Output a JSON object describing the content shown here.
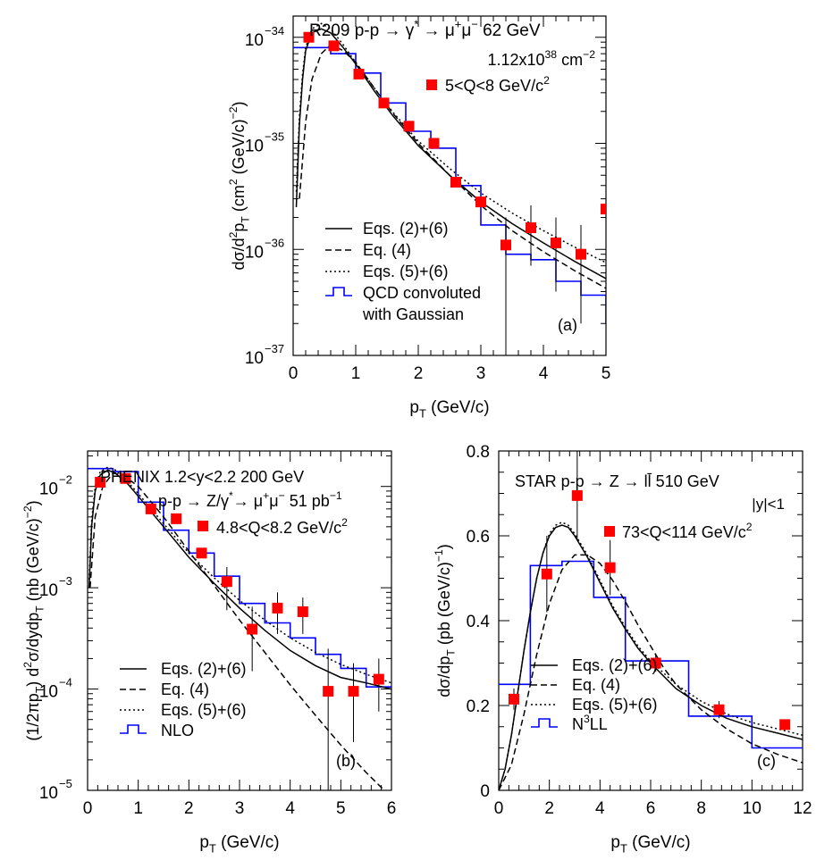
{
  "chart_data": [
    {
      "id": "a",
      "type": "scatter",
      "panel_label": "(a)",
      "xlabel": "p_T (GeV/c)",
      "ylabel": "dσ/d²p_T (cm² (GeV/c)⁻²)",
      "xlim": [
        0,
        5
      ],
      "ylim_log10": [
        -37,
        -33.8
      ],
      "x_ticks": [
        "0",
        "1",
        "2",
        "3",
        "4",
        "5"
      ],
      "y_ticks": [
        {
          "exp": -37,
          "label": "10",
          "sup": "−37"
        },
        {
          "exp": -36,
          "label": "10",
          "sup": "−36"
        },
        {
          "exp": -35,
          "label": "10",
          "sup": "−35"
        },
        {
          "exp": -34,
          "label": "10",
          "sup": "−34"
        }
      ],
      "annotations": [
        "R209  p-p → γ* → μ⁺μ⁻  62 GeV",
        "1.12x10³⁸ cm⁻²",
        "5<Q<8 GeV/c²"
      ],
      "legend": [
        "Eqs. (2)+(6)",
        "Eq. (4)",
        "Eqs. (5)+(6)",
        "QCD convoluted",
        "with Gaussian"
      ],
      "data_points": [
        {
          "x": 0.25,
          "y": 1e-34,
          "yerr_lo": null,
          "yerr_hi": null
        },
        {
          "x": 0.65,
          "y": 8.3e-35,
          "yerr_lo": null,
          "yerr_hi": null
        },
        {
          "x": 1.05,
          "y": 4.5e-35,
          "yerr_lo": null,
          "yerr_hi": null
        },
        {
          "x": 1.45,
          "y": 2.4e-35,
          "yerr_lo": null,
          "yerr_hi": null
        },
        {
          "x": 1.85,
          "y": 1.45e-35,
          "yerr_lo": null,
          "yerr_hi": null
        },
        {
          "x": 2.25,
          "y": 1e-35,
          "yerr_lo": null,
          "yerr_hi": null
        },
        {
          "x": 2.6,
          "y": 4.3e-36,
          "yerr_lo": null,
          "yerr_hi": null
        },
        {
          "x": 3.0,
          "y": 2.8e-36,
          "yerr_lo": null,
          "yerr_hi": null
        },
        {
          "x": 3.4,
          "y": 1.1e-36,
          "yerr_lo": 1e-37,
          "yerr_hi": 2e-36
        },
        {
          "x": 3.8,
          "y": 1.6e-36,
          "yerr_lo": 7e-37,
          "yerr_hi": 2.6e-36
        },
        {
          "x": 4.2,
          "y": 1.15e-36,
          "yerr_lo": 4e-37,
          "yerr_hi": 2e-36
        },
        {
          "x": 4.6,
          "y": 9e-37,
          "yerr_lo": 2e-37,
          "yerr_hi": 1.7e-36
        },
        {
          "x": 5.0,
          "y": 2.4e-36,
          "yerr_lo": 1e-37,
          "yerr_hi": 5e-36
        }
      ],
      "histogram": {
        "edges": [
          0,
          0.2,
          0.6,
          1.0,
          1.4,
          1.8,
          2.2,
          2.6,
          3.0,
          3.4,
          3.8,
          4.2,
          4.6,
          5.0
        ],
        "values": [
          8e-35,
          8e-35,
          7e-35,
          4.6e-35,
          2.4e-35,
          1.3e-35,
          9e-36,
          4e-36,
          1.7e-36,
          9e-37,
          8e-37,
          5e-37,
          3.7e-37,
          2e-37
        ]
      },
      "curves": [
        {
          "name": "Eqs. (2)+(6)",
          "style": "solid",
          "x": [
            0.05,
            0.1,
            0.15,
            0.2,
            0.3,
            0.45,
            0.6,
            0.8,
            1.0,
            1.3,
            1.6,
            2.0,
            2.5,
            3.0,
            3.5,
            4.0,
            4.5,
            5.0
          ],
          "y": [
            2.5e-36,
            1.5e-35,
            4e-35,
            7.5e-35,
            1.1e-34,
            1.2e-34,
            1.1e-34,
            8e-35,
            5.6e-35,
            3.1e-35,
            1.8e-35,
            9.5e-36,
            5e-36,
            2.8e-36,
            1.75e-36,
            1.15e-36,
            7.7e-37,
            5.3e-37
          ]
        },
        {
          "name": "Eq. (4)",
          "style": "dashed",
          "x": [
            0.1,
            0.2,
            0.3,
            0.45,
            0.6,
            0.8,
            1.0,
            1.3,
            1.6,
            2.0,
            2.5,
            3.0,
            3.5,
            4.0,
            4.5,
            5.0
          ],
          "y": [
            3e-36,
            1.6e-35,
            4e-35,
            7e-35,
            8.5e-35,
            7.5e-35,
            5.8e-35,
            3.3e-35,
            1.9e-35,
            1e-35,
            5e-36,
            2.6e-36,
            1.5e-36,
            9.5e-37,
            6.3e-37,
            4.3e-37
          ]
        },
        {
          "name": "Eqs. (5)+(6)",
          "style": "dotted",
          "x": [
            0.05,
            0.1,
            0.15,
            0.2,
            0.3,
            0.45,
            0.6,
            0.8,
            1.0,
            1.3,
            1.6,
            2.0,
            2.5,
            3.0,
            3.5,
            4.0,
            4.5,
            5.0
          ],
          "y": [
            3.5e-36,
            1.8e-35,
            4.5e-35,
            8e-35,
            1.2e-34,
            1.35e-34,
            1.2e-34,
            8.5e-35,
            5.8e-35,
            3.3e-35,
            1.95e-35,
            1.05e-35,
            5.8e-36,
            3.4e-36,
            2.2e-36,
            1.5e-36,
            1.05e-36,
            7.5e-37
          ]
        }
      ]
    },
    {
      "id": "b",
      "type": "scatter",
      "panel_label": "(b)",
      "xlabel": "p_T (GeV/c)",
      "ylabel": "(1/2πp_T) d²σ/dydp_T (nb (GeV/c)⁻²)",
      "xlim": [
        0,
        6
      ],
      "ylim_log10": [
        -5,
        -1.65
      ],
      "x_ticks": [
        "0",
        "1",
        "2",
        "3",
        "4",
        "5",
        "6"
      ],
      "y_ticks": [
        {
          "exp": -5,
          "label": "10",
          "sup": "−5"
        },
        {
          "exp": -4,
          "label": "10",
          "sup": "−4"
        },
        {
          "exp": -3,
          "label": "10",
          "sup": "−3"
        },
        {
          "exp": -2,
          "label": "10",
          "sup": "−2"
        }
      ],
      "annotations": [
        "PHENIX  1.2<y<2.2    200 GeV",
        "p-p → Z/γ*→ μ⁺μ⁻ 51 pb⁻¹",
        "4.8<Q<8.2 GeV/c²"
      ],
      "legend": [
        "Eqs. (2)+(6)",
        "Eq. (4)",
        "Eqs. (5)+(6)",
        "NLO"
      ],
      "data_points": [
        {
          "x": 0.25,
          "y": 0.011,
          "yerr_lo": null,
          "yerr_hi": null
        },
        {
          "x": 0.75,
          "y": 0.012,
          "yerr_lo": null,
          "yerr_hi": null
        },
        {
          "x": 1.25,
          "y": 0.006,
          "yerr_lo": null,
          "yerr_hi": null
        },
        {
          "x": 1.75,
          "y": 0.0048,
          "yerr_lo": null,
          "yerr_hi": null
        },
        {
          "x": 2.25,
          "y": 0.0022,
          "yerr_lo": null,
          "yerr_hi": null
        },
        {
          "x": 2.75,
          "y": 0.00115,
          "yerr_lo": 0.0006,
          "yerr_hi": 0.0016
        },
        {
          "x": 3.25,
          "y": 0.00039,
          "yerr_lo": 0.00015,
          "yerr_hi": 0.00065
        },
        {
          "x": 3.75,
          "y": 0.00063,
          "yerr_lo": 0.00035,
          "yerr_hi": 0.0009
        },
        {
          "x": 4.25,
          "y": 0.00058,
          "yerr_lo": 0.00035,
          "yerr_hi": 0.0008
        },
        {
          "x": 4.75,
          "y": 9.5e-05,
          "yerr_lo": 1e-05,
          "yerr_hi": 0.00025
        },
        {
          "x": 5.25,
          "y": 9.5e-05,
          "yerr_lo": 3e-05,
          "yerr_hi": 0.00018
        },
        {
          "x": 5.75,
          "y": 0.000125,
          "yerr_lo": 6e-05,
          "yerr_hi": 0.0002
        }
      ],
      "histogram": {
        "edges": [
          0,
          0.5,
          1.0,
          1.5,
          2.0,
          2.5,
          3.0,
          3.5,
          4.0,
          4.5,
          5.0,
          5.5,
          6.0
        ],
        "values": [
          0.015,
          0.014,
          0.007,
          0.0037,
          0.0022,
          0.0013,
          0.0007,
          0.00045,
          0.00032,
          0.00022,
          0.00016,
          0.000105
        ]
      },
      "curves": [
        {
          "name": "Eqs. (2)+(6)",
          "style": "solid",
          "x": [
            0.03,
            0.08,
            0.15,
            0.25,
            0.4,
            0.55,
            0.8,
            1.0,
            1.5,
            2.0,
            2.5,
            3.0,
            3.5,
            4.0,
            4.5,
            5.0,
            5.5,
            6.0
          ],
          "y": [
            0.001,
            0.004,
            0.009,
            0.013,
            0.0145,
            0.0135,
            0.0105,
            0.008,
            0.004,
            0.002,
            0.0011,
            0.00063,
            0.00038,
            0.00024,
            0.00017,
            0.00013,
            0.000115,
            0.0001
          ]
        },
        {
          "name": "Eq. (4)",
          "style": "dashed",
          "x": [
            0.05,
            0.15,
            0.3,
            0.5,
            0.7,
            1.0,
            1.5,
            2.0,
            2.5,
            3.0,
            3.5,
            4.0,
            4.5,
            5.0,
            5.5,
            6.0
          ],
          "y": [
            0.001,
            0.005,
            0.01,
            0.0135,
            0.013,
            0.01,
            0.005,
            0.0023,
            0.00105,
            0.00048,
            0.00023,
            0.00011,
            5.5e-05,
            2.8e-05,
            1.5e-05,
            8.5e-06
          ]
        },
        {
          "name": "Eqs. (5)+(6)",
          "style": "dotted",
          "x": [
            0.03,
            0.08,
            0.15,
            0.25,
            0.4,
            0.55,
            0.8,
            1.0,
            1.5,
            2.0,
            2.5,
            3.0,
            3.5,
            4.0,
            4.5,
            5.0,
            5.5,
            6.0
          ],
          "y": [
            0.0012,
            0.0045,
            0.01,
            0.014,
            0.0155,
            0.0145,
            0.011,
            0.0085,
            0.0043,
            0.0022,
            0.00125,
            0.00075,
            0.00048,
            0.00032,
            0.00023,
            0.000175,
            0.00014,
            0.000115
          ]
        }
      ]
    },
    {
      "id": "c",
      "type": "scatter",
      "panel_label": "(c)",
      "xlabel": "p_T (GeV/c)",
      "ylabel": "dσ/dp_T (pb (GeV/c)⁻¹)",
      "xlim": [
        0,
        12
      ],
      "ylim": [
        0,
        0.8
      ],
      "x_ticks": [
        "0",
        "2",
        "4",
        "6",
        "8",
        "10",
        "12"
      ],
      "y_ticks": [
        "0",
        "0.2",
        "0.4",
        "0.6",
        "0.8"
      ],
      "annotations": [
        "STAR  p-p → Z → ll̄  510 GeV",
        "|y|<1",
        "73<Q<114 GeV/c²"
      ],
      "legend": [
        "Eqs. (2)+(6)",
        "Eq. (4)",
        "Eqs. (5)+(6)",
        "N³LL"
      ],
      "data_points": [
        {
          "x": 0.6,
          "y": 0.215,
          "yerr_lo": 0.19,
          "yerr_hi": 0.24
        },
        {
          "x": 1.9,
          "y": 0.51,
          "yerr_lo": 0.42,
          "yerr_hi": 0.6
        },
        {
          "x": 3.1,
          "y": 0.695,
          "yerr_lo": 0.59,
          "yerr_hi": 0.8
        },
        {
          "x": 4.4,
          "y": 0.525,
          "yerr_lo": 0.46,
          "yerr_hi": 0.59
        },
        {
          "x": 6.2,
          "y": 0.3,
          "yerr_lo": 0.28,
          "yerr_hi": 0.32
        },
        {
          "x": 8.7,
          "y": 0.19,
          "yerr_lo": 0.17,
          "yerr_hi": 0.21
        },
        {
          "x": 11.3,
          "y": 0.155,
          "yerr_lo": null,
          "yerr_hi": null
        }
      ],
      "histogram": {
        "edges": [
          0,
          1.25,
          2.5,
          3.75,
          5.0,
          7.5,
          10.0,
          12.0
        ],
        "values": [
          0.25,
          0.53,
          0.54,
          0.455,
          0.305,
          0.175,
          0.1
        ]
      },
      "curves": [
        {
          "name": "Eqs. (2)+(6)",
          "style": "solid",
          "x": [
            0,
            0.25,
            0.5,
            0.75,
            1.0,
            1.25,
            1.5,
            1.75,
            2.0,
            2.25,
            2.5,
            2.75,
            3.0,
            3.5,
            4.0,
            4.5,
            5.0,
            5.5,
            6.0,
            7.0,
            8.0,
            9.0,
            10.0,
            11.0,
            12.0
          ],
          "y": [
            0,
            0.05,
            0.13,
            0.23,
            0.33,
            0.42,
            0.5,
            0.56,
            0.6,
            0.62,
            0.625,
            0.62,
            0.6,
            0.55,
            0.49,
            0.43,
            0.38,
            0.335,
            0.3,
            0.24,
            0.2,
            0.17,
            0.15,
            0.135,
            0.12
          ]
        },
        {
          "name": "Eq. (4)",
          "style": "dashed",
          "x": [
            0,
            0.5,
            1.0,
            1.5,
            2.0,
            2.5,
            3.0,
            3.5,
            4.0,
            4.5,
            5.0,
            5.5,
            6.0,
            6.5,
            7.0,
            8.0,
            9.0,
            10.0,
            11.0,
            12.0
          ],
          "y": [
            0,
            0.06,
            0.18,
            0.32,
            0.44,
            0.52,
            0.555,
            0.555,
            0.535,
            0.495,
            0.445,
            0.39,
            0.34,
            0.29,
            0.25,
            0.19,
            0.145,
            0.11,
            0.085,
            0.065
          ]
        },
        {
          "name": "Eqs. (5)+(6)",
          "style": "dotted",
          "x": [
            0,
            0.25,
            0.5,
            0.75,
            1.0,
            1.25,
            1.5,
            1.75,
            2.0,
            2.25,
            2.5,
            2.75,
            3.0,
            3.5,
            4.0,
            4.5,
            5.0,
            5.5,
            6.0,
            7.0,
            8.0,
            9.0,
            10.0,
            11.0,
            12.0
          ],
          "y": [
            0,
            0.05,
            0.13,
            0.23,
            0.33,
            0.42,
            0.5,
            0.56,
            0.605,
            0.625,
            0.632,
            0.625,
            0.605,
            0.555,
            0.495,
            0.435,
            0.385,
            0.34,
            0.305,
            0.25,
            0.21,
            0.18,
            0.16,
            0.145,
            0.13
          ]
        }
      ]
    }
  ],
  "colors": {
    "data_points": "#ff0000",
    "histogram": "#0000ff",
    "curves": "#000000"
  }
}
